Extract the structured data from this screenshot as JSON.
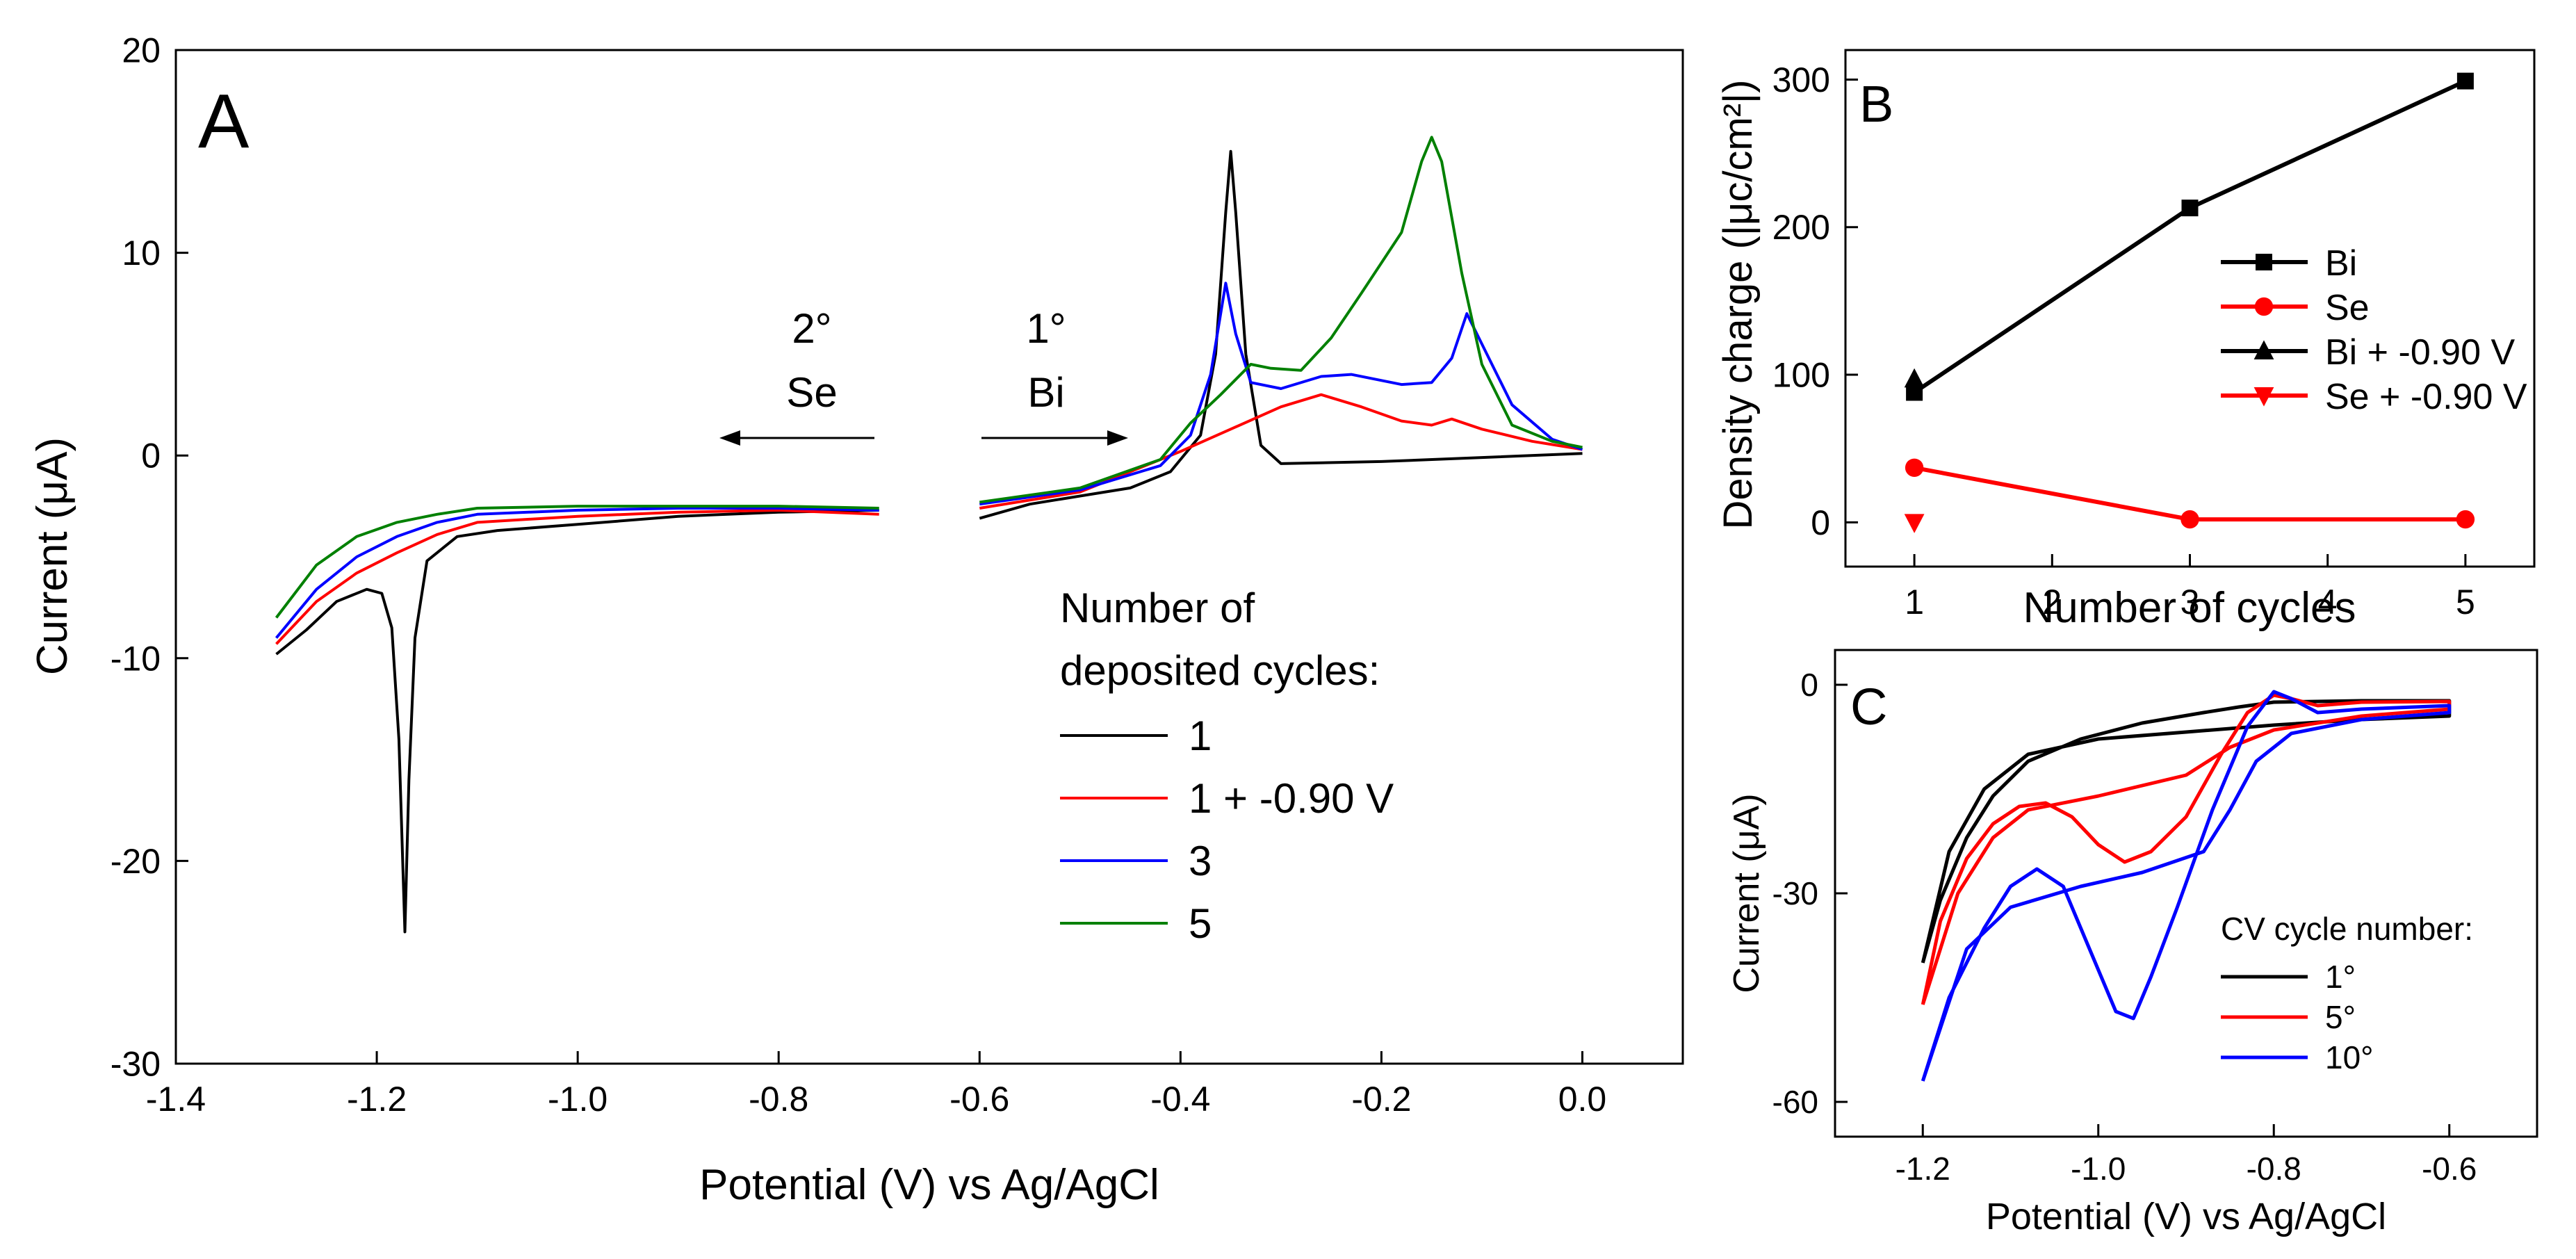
{
  "panel_labels": {
    "a": "A",
    "b": "B",
    "c": "C"
  },
  "chart_data": [
    {
      "id": "A",
      "type": "line",
      "xlabel": "Potential (V) vs Ag/AgCl",
      "ylabel": "Current (μA)",
      "xlim": [
        -1.4,
        0.1
      ],
      "ylim": [
        -30,
        20
      ],
      "xticks": [
        -1.4,
        -1.2,
        -1.0,
        -0.8,
        -0.6,
        -0.4,
        -0.2,
        0.0
      ],
      "xtick_labels": [
        "-1.4",
        "-1.2",
        "-1.0",
        "-0.8",
        "-0.6",
        "-0.4",
        "-0.2",
        "0.0"
      ],
      "yticks": [
        -30,
        -20,
        -10,
        0,
        10,
        20
      ],
      "ytick_labels": [
        "-30",
        "-20",
        "-10",
        "0",
        "10",
        "20"
      ],
      "annotations": {
        "se_order": "2°",
        "se_label": "Se",
        "bi_order": "1°",
        "bi_label": "Bi"
      },
      "legend_title_1": "Number of",
      "legend_title_2": "deposited cycles:",
      "series": [
        {
          "name": "1",
          "color": "#000000",
          "segments": [
            [
              [
                -1.3,
                -9.8
              ],
              [
                -1.27,
                -8.6
              ],
              [
                -1.24,
                -7.2
              ],
              [
                -1.21,
                -6.6
              ],
              [
                -1.195,
                -6.8
              ],
              [
                -1.185,
                -8.5
              ],
              [
                -1.178,
                -14
              ],
              [
                -1.172,
                -23.5
              ],
              [
                -1.168,
                -16
              ],
              [
                -1.162,
                -9
              ],
              [
                -1.15,
                -5.2
              ],
              [
                -1.12,
                -4.0
              ],
              [
                -1.08,
                -3.7
              ],
              [
                -1.0,
                -3.4
              ],
              [
                -0.9,
                -3.0
              ],
              [
                -0.8,
                -2.8
              ],
              [
                -0.7,
                -2.7
              ]
            ],
            [
              [
                -0.6,
                -3.1
              ],
              [
                -0.55,
                -2.4
              ],
              [
                -0.5,
                -2.0
              ],
              [
                -0.45,
                -1.6
              ],
              [
                -0.41,
                -0.8
              ],
              [
                -0.38,
                1.0
              ],
              [
                -0.365,
                5.0
              ],
              [
                -0.355,
                12.0
              ],
              [
                -0.35,
                15.0
              ],
              [
                -0.345,
                12.0
              ],
              [
                -0.335,
                5.0
              ],
              [
                -0.32,
                0.5
              ],
              [
                -0.3,
                -0.4
              ],
              [
                -0.2,
                -0.3
              ],
              [
                -0.1,
                -0.1
              ],
              [
                0.0,
                0.1
              ]
            ]
          ]
        },
        {
          "name": "1 + -0.90 V",
          "color": "#ff0000",
          "segments": [
            [
              [
                -1.3,
                -9.3
              ],
              [
                -1.26,
                -7.2
              ],
              [
                -1.22,
                -5.8
              ],
              [
                -1.18,
                -4.8
              ],
              [
                -1.14,
                -3.9
              ],
              [
                -1.1,
                -3.3
              ],
              [
                -1.0,
                -3.0
              ],
              [
                -0.9,
                -2.8
              ],
              [
                -0.8,
                -2.7
              ],
              [
                -0.7,
                -2.9
              ]
            ],
            [
              [
                -0.6,
                -2.6
              ],
              [
                -0.5,
                -1.8
              ],
              [
                -0.4,
                0.2
              ],
              [
                -0.35,
                1.3
              ],
              [
                -0.3,
                2.4
              ],
              [
                -0.26,
                3.0
              ],
              [
                -0.22,
                2.4
              ],
              [
                -0.18,
                1.7
              ],
              [
                -0.15,
                1.5
              ],
              [
                -0.13,
                1.8
              ],
              [
                -0.1,
                1.3
              ],
              [
                -0.05,
                0.7
              ],
              [
                0.0,
                0.3
              ]
            ]
          ]
        },
        {
          "name": "3",
          "color": "#0000ff",
          "segments": [
            [
              [
                -1.3,
                -9.0
              ],
              [
                -1.26,
                -6.6
              ],
              [
                -1.22,
                -5.0
              ],
              [
                -1.18,
                -4.0
              ],
              [
                -1.14,
                -3.3
              ],
              [
                -1.1,
                -2.9
              ],
              [
                -1.0,
                -2.7
              ],
              [
                -0.9,
                -2.6
              ],
              [
                -0.8,
                -2.6
              ],
              [
                -0.7,
                -2.7
              ]
            ],
            [
              [
                -0.6,
                -2.4
              ],
              [
                -0.5,
                -1.7
              ],
              [
                -0.42,
                -0.5
              ],
              [
                -0.39,
                1.0
              ],
              [
                -0.37,
                4.0
              ],
              [
                -0.355,
                8.5
              ],
              [
                -0.345,
                6.0
              ],
              [
                -0.33,
                3.6
              ],
              [
                -0.3,
                3.3
              ],
              [
                -0.26,
                3.9
              ],
              [
                -0.23,
                4.0
              ],
              [
                -0.18,
                3.5
              ],
              [
                -0.15,
                3.6
              ],
              [
                -0.13,
                4.8
              ],
              [
                -0.115,
                7.0
              ],
              [
                -0.1,
                5.5
              ],
              [
                -0.07,
                2.5
              ],
              [
                -0.03,
                0.8
              ],
              [
                0.0,
                0.3
              ]
            ]
          ]
        },
        {
          "name": "5",
          "color": "#008000",
          "segments": [
            [
              [
                -1.3,
                -8.0
              ],
              [
                -1.26,
                -5.4
              ],
              [
                -1.22,
                -4.0
              ],
              [
                -1.18,
                -3.3
              ],
              [
                -1.14,
                -2.9
              ],
              [
                -1.1,
                -2.6
              ],
              [
                -1.0,
                -2.5
              ],
              [
                -0.9,
                -2.5
              ],
              [
                -0.8,
                -2.5
              ],
              [
                -0.7,
                -2.6
              ]
            ],
            [
              [
                -0.6,
                -2.3
              ],
              [
                -0.5,
                -1.6
              ],
              [
                -0.42,
                -0.2
              ],
              [
                -0.39,
                1.6
              ],
              [
                -0.36,
                3.0
              ],
              [
                -0.33,
                4.5
              ],
              [
                -0.31,
                4.3
              ],
              [
                -0.28,
                4.2
              ],
              [
                -0.25,
                5.8
              ],
              [
                -0.22,
                8.0
              ],
              [
                -0.18,
                11.0
              ],
              [
                -0.16,
                14.5
              ],
              [
                -0.15,
                15.7
              ],
              [
                -0.14,
                14.5
              ],
              [
                -0.12,
                9.0
              ],
              [
                -0.1,
                4.5
              ],
              [
                -0.07,
                1.5
              ],
              [
                -0.03,
                0.7
              ],
              [
                0.0,
                0.4
              ]
            ]
          ]
        }
      ]
    },
    {
      "id": "B",
      "type": "line",
      "xlabel": "Number of cycles",
      "ylabel": "Density charge (|μc/cm²|)",
      "xlim": [
        0.5,
        5.5
      ],
      "ylim": [
        -30,
        320
      ],
      "xticks": [
        1,
        2,
        3,
        4,
        5
      ],
      "xtick_labels": [
        "1",
        "2",
        "3",
        "4",
        "5"
      ],
      "yticks": [
        0,
        100,
        200,
        300
      ],
      "ytick_labels": [
        "0",
        "100",
        "200",
        "300"
      ],
      "series": [
        {
          "name": "Bi",
          "color": "#000000",
          "marker": "square",
          "x": [
            1,
            3,
            5
          ],
          "y": [
            88,
            213,
            299
          ]
        },
        {
          "name": "Se",
          "color": "#ff0000",
          "marker": "circle",
          "x": [
            1,
            3,
            5
          ],
          "y": [
            37,
            2,
            2
          ]
        },
        {
          "name": "Bi + -0.90 V",
          "color": "#000000",
          "marker": "triangle-up",
          "x": [
            1
          ],
          "y": [
            97
          ]
        },
        {
          "name": "Se + -0.90 V",
          "color": "#ff0000",
          "marker": "triangle-down",
          "x": [
            1
          ],
          "y": [
            0
          ]
        }
      ]
    },
    {
      "id": "C",
      "type": "line",
      "xlabel": "Potential (V) vs Ag/AgCl",
      "ylabel": "Current (μA)",
      "xlim": [
        -1.3,
        -0.5
      ],
      "ylim": [
        -65,
        5
      ],
      "xticks": [
        -1.2,
        -1.0,
        -0.8,
        -0.6
      ],
      "xtick_labels": [
        "-1.2",
        "-1.0",
        "-0.8",
        "-0.6"
      ],
      "yticks": [
        -60,
        -30,
        0
      ],
      "ytick_labels": [
        "-60",
        "-30",
        "0"
      ],
      "legend_title": "CV cycle number:",
      "series": [
        {
          "name": "1°",
          "color": "#000000",
          "points": [
            [
              -1.2,
              -40
            ],
            [
              -1.18,
              -31
            ],
            [
              -1.15,
              -22
            ],
            [
              -1.12,
              -16
            ],
            [
              -1.08,
              -11
            ],
            [
              -1.02,
              -7.8
            ],
            [
              -0.95,
              -5.5
            ],
            [
              -0.88,
              -4
            ],
            [
              -0.84,
              -3.2
            ],
            [
              -0.8,
              -2.5
            ],
            [
              -0.7,
              -2.3
            ],
            [
              -0.6,
              -2.3
            ],
            [
              -0.6,
              -4.5
            ],
            [
              -0.7,
              -5
            ],
            [
              -0.8,
              -5.8
            ],
            [
              -0.9,
              -6.8
            ],
            [
              -1.0,
              -7.8
            ],
            [
              -1.08,
              -10
            ],
            [
              -1.13,
              -15
            ],
            [
              -1.17,
              -24
            ],
            [
              -1.2,
              -40
            ]
          ]
        },
        {
          "name": "5°",
          "color": "#ff0000",
          "points": [
            [
              -1.2,
              -46
            ],
            [
              -1.18,
              -34
            ],
            [
              -1.15,
              -25
            ],
            [
              -1.12,
              -20
            ],
            [
              -1.09,
              -17.5
            ],
            [
              -1.06,
              -17
            ],
            [
              -1.03,
              -19
            ],
            [
              -1.0,
              -23
            ],
            [
              -0.97,
              -25.5
            ],
            [
              -0.94,
              -24
            ],
            [
              -0.9,
              -19
            ],
            [
              -0.86,
              -10
            ],
            [
              -0.83,
              -4
            ],
            [
              -0.8,
              -1.5
            ],
            [
              -0.78,
              -2
            ],
            [
              -0.75,
              -3
            ],
            [
              -0.7,
              -2.5
            ],
            [
              -0.6,
              -2.4
            ],
            [
              -0.6,
              -3.5
            ],
            [
              -0.7,
              -4.5
            ],
            [
              -0.8,
              -6.5
            ],
            [
              -0.85,
              -9
            ],
            [
              -0.9,
              -13
            ],
            [
              -1.0,
              -16
            ],
            [
              -1.08,
              -18
            ],
            [
              -1.12,
              -22
            ],
            [
              -1.16,
              -30
            ],
            [
              -1.2,
              -46
            ]
          ]
        },
        {
          "name": "10°",
          "color": "#0000ff",
          "points": [
            [
              -1.2,
              -57
            ],
            [
              -1.17,
              -45
            ],
            [
              -1.13,
              -35
            ],
            [
              -1.1,
              -29
            ],
            [
              -1.07,
              -26.5
            ],
            [
              -1.04,
              -29
            ],
            [
              -1.01,
              -38
            ],
            [
              -0.98,
              -47
            ],
            [
              -0.96,
              -48
            ],
            [
              -0.94,
              -42
            ],
            [
              -0.91,
              -32
            ],
            [
              -0.87,
              -18
            ],
            [
              -0.83,
              -6
            ],
            [
              -0.8,
              -1
            ],
            [
              -0.78,
              -2
            ],
            [
              -0.75,
              -4
            ],
            [
              -0.7,
              -3.5
            ],
            [
              -0.6,
              -3
            ],
            [
              -0.6,
              -4
            ],
            [
              -0.7,
              -5
            ],
            [
              -0.78,
              -7
            ],
            [
              -0.82,
              -11
            ],
            [
              -0.85,
              -18
            ],
            [
              -0.88,
              -24
            ],
            [
              -0.95,
              -27
            ],
            [
              -1.02,
              -29
            ],
            [
              -1.1,
              -32
            ],
            [
              -1.15,
              -38
            ],
            [
              -1.2,
              -57
            ]
          ]
        }
      ]
    }
  ]
}
